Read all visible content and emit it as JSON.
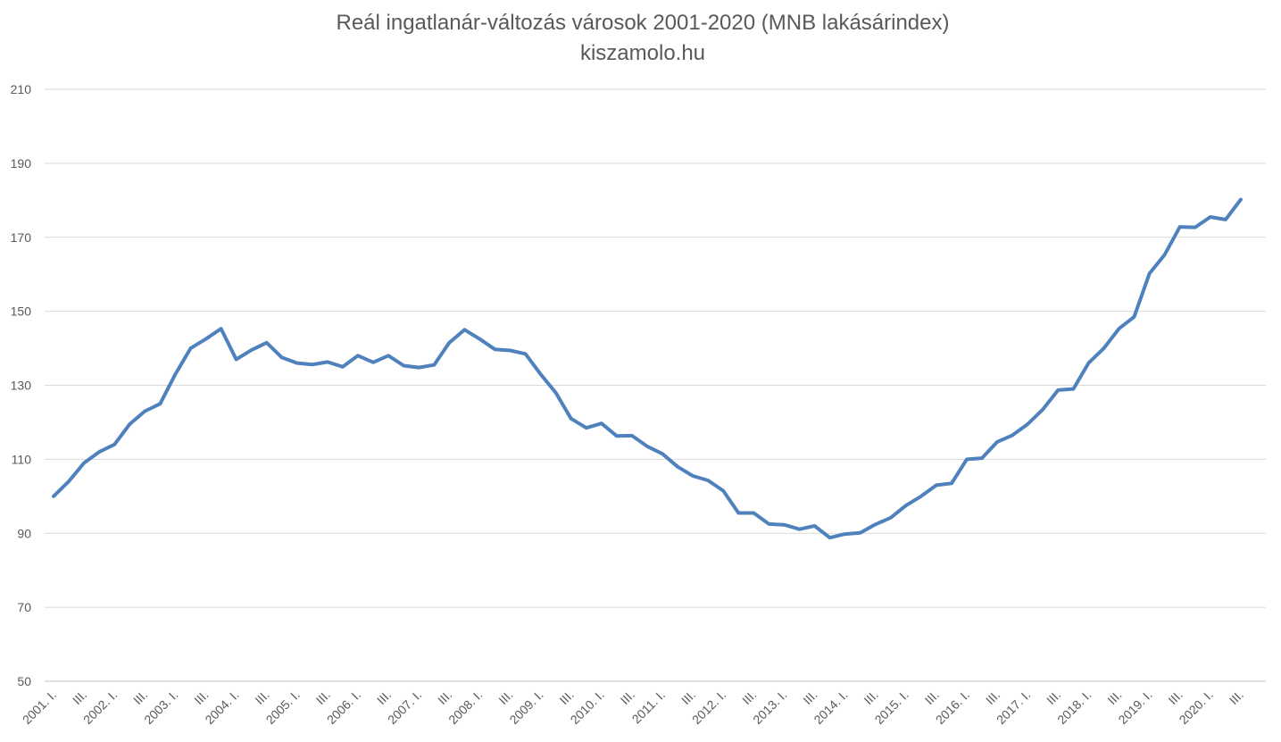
{
  "chart_data": {
    "type": "line",
    "title": "Reál ingatlanár-változás városok 2001-2020  (MNB lakásárindex)",
    "subtitle": "kiszamolo.hu",
    "xlabel": "",
    "ylabel": "",
    "ylim": [
      50,
      210
    ],
    "yticks": [
      50,
      70,
      90,
      110,
      130,
      150,
      170,
      190,
      210
    ],
    "grid": true,
    "legend": "none",
    "line_color": "#4f81bd",
    "x_tick_labels": [
      "2001. I.",
      "III.",
      "2002. I.",
      "III.",
      "2003. I.",
      "III.",
      "2004. I.",
      "III.",
      "2005. I.",
      "III.",
      "2006. I.",
      "III.",
      "2007. I.",
      "III.",
      "2008. I.",
      "III.",
      "2009. I.",
      "III.",
      "2010. I.",
      "III.",
      "2011. I.",
      "III.",
      "2012. I.",
      "III.",
      "2013. I.",
      "III.",
      "2014. I.",
      "III.",
      "2015. I.",
      "III.",
      "2016. I.",
      "III.",
      "2017. I.",
      "III.",
      "2018. I.",
      "III.",
      "2019. I.",
      "III.",
      "2020. I.",
      "III."
    ],
    "series": [
      {
        "values": [
          100.0,
          104.0,
          109.0,
          112.0,
          114.0,
          119.5,
          123.0,
          125.0,
          133.0,
          140.0,
          142.5,
          145.3,
          137.0,
          139.5,
          141.5,
          137.5,
          136.0,
          135.6,
          136.3,
          135.0,
          138.0,
          136.2,
          138.0,
          135.3,
          134.8,
          135.5,
          141.5,
          145.0,
          142.5,
          139.7,
          139.4,
          138.5,
          133.0,
          128.0,
          121.0,
          118.5,
          119.7,
          116.3,
          116.4,
          113.5,
          111.5,
          108.0,
          105.5,
          104.3,
          101.5,
          95.5,
          95.5,
          92.5,
          92.3,
          91.1,
          92.0,
          88.8,
          89.8,
          90.1,
          92.4,
          94.2,
          97.5,
          100.0,
          103.0,
          103.5,
          110.0,
          110.3,
          114.7,
          116.5,
          119.5,
          123.5,
          128.7,
          129.0,
          136.0,
          140.0,
          145.3,
          148.5,
          160.2,
          165.3,
          172.8,
          172.7,
          175.5,
          174.8,
          180.2
        ]
      }
    ]
  }
}
